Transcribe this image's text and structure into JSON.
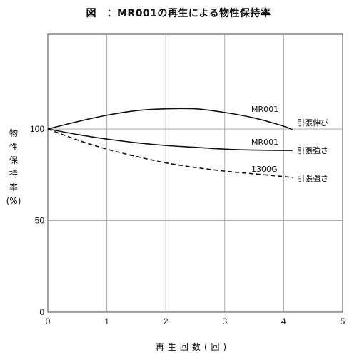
{
  "chart_data": {
    "type": "line",
    "title": "図　：MR001の再生による物性保持率",
    "xlabel": "再生回数(回)",
    "ylabel": "物性保持率(%)",
    "xlim": [
      0,
      5
    ],
    "ylim": [
      0,
      150
    ],
    "x_ticks": [
      "0",
      "1",
      "2",
      "3",
      "4",
      "5"
    ],
    "y_ticks": [
      {
        "value": 0,
        "label": "0"
      },
      {
        "value": 50,
        "label": "50"
      },
      {
        "value": 100,
        "label": "100"
      }
    ],
    "grid": true,
    "series": [
      {
        "name": "MR001",
        "property": "引張伸び",
        "style": "solid",
        "x": [
          0,
          0.5,
          1,
          1.5,
          2,
          2.5,
          3,
          3.5,
          4,
          4.15
        ],
        "values": [
          100,
          104,
          107.5,
          110,
          111,
          111,
          109,
          106,
          101.5,
          99.5
        ]
      },
      {
        "name": "MR001",
        "property": "引張強さ",
        "style": "solid",
        "x": [
          0,
          0.5,
          1,
          1.5,
          2,
          2.5,
          3,
          3.5,
          4,
          4.15
        ],
        "values": [
          100,
          97,
          94.5,
          92.5,
          91,
          90,
          89,
          88.5,
          88.3,
          88.3
        ]
      },
      {
        "name": "1300G",
        "property": "引張強さ",
        "style": "dashed",
        "x": [
          0,
          0.5,
          1,
          1.5,
          2,
          2.5,
          3,
          3.5,
          4,
          4.15
        ],
        "values": [
          100,
          94,
          89,
          85,
          81.5,
          79,
          77,
          75.5,
          74,
          73.5
        ]
      }
    ]
  }
}
